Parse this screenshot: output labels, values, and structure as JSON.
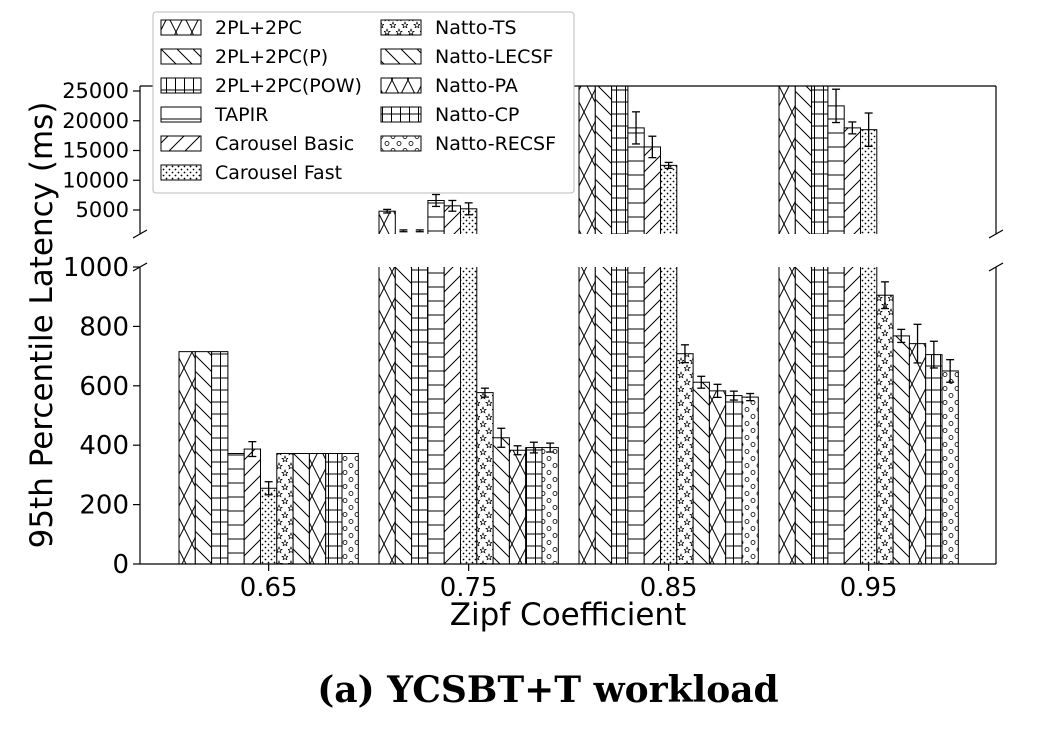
{
  "caption": "(a) YCSBT+T workload",
  "chart_data": {
    "type": "bar",
    "xlabel": "Zipf Coefficient",
    "ylabel": "95th Percentile Latency (ms)",
    "categories": [
      "0.65",
      "0.75",
      "0.85",
      "0.95"
    ],
    "broken_axis": true,
    "ylim_lower": [
      0,
      1000
    ],
    "ylim_upper": [
      2000,
      26000
    ],
    "yticks_lower": [
      "0",
      "200",
      "400",
      "600",
      "800",
      "1000"
    ],
    "yticks_upper": [
      "5000",
      "10000",
      "15000",
      "20000",
      "25000"
    ],
    "legend_position": "upper-left",
    "series": [
      {
        "name": "2PL+2PC",
        "pattern": "x-hatch",
        "values": [
          715,
          4800,
          40000,
          40000
        ],
        "errors": [
          0,
          300,
          0,
          0
        ]
      },
      {
        "name": "2PL+2PC(P)",
        "pattern": "back-diagonal",
        "values": [
          715,
          1500,
          40000,
          40000
        ],
        "errors": [
          0,
          150,
          0,
          0
        ]
      },
      {
        "name": "2PL+2PC(POW)",
        "pattern": "grid",
        "values": [
          715,
          1500,
          40000,
          40000
        ],
        "errors": [
          0,
          150,
          0,
          0
        ]
      },
      {
        "name": "TAPIR",
        "pattern": "horizontal",
        "values": [
          372,
          6600,
          18800,
          22500
        ],
        "errors": [
          0,
          1000,
          2700,
          2800
        ]
      },
      {
        "name": "Carousel Basic",
        "pattern": "forward-diagonal",
        "values": [
          387,
          5700,
          15600,
          18800
        ],
        "errors": [
          25,
          900,
          1800,
          1000
        ]
      },
      {
        "name": "Carousel Fast",
        "pattern": "dots",
        "values": [
          255,
          5200,
          12500,
          18500
        ],
        "errors": [
          22,
          1000,
          500,
          2800
        ]
      },
      {
        "name": "Natto-TS",
        "pattern": "stars",
        "values": [
          372,
          577,
          708,
          905
        ],
        "errors": [
          0,
          15,
          30,
          45
        ]
      },
      {
        "name": "Natto-LECSF",
        "pattern": "back-diagonal",
        "values": [
          372,
          425,
          612,
          768
        ],
        "errors": [
          0,
          32,
          20,
          22
        ]
      },
      {
        "name": "Natto-PA",
        "pattern": "x-hatch",
        "values": [
          372,
          383,
          583,
          742
        ],
        "errors": [
          0,
          15,
          22,
          65
        ]
      },
      {
        "name": "Natto-CP",
        "pattern": "grid-h",
        "values": [
          372,
          392,
          567,
          705
        ],
        "errors": [
          0,
          18,
          15,
          45
        ]
      },
      {
        "name": "Natto-RECSF",
        "pattern": "circles",
        "values": [
          372,
          392,
          562,
          650
        ],
        "errors": [
          0,
          15,
          12,
          38
        ]
      }
    ]
  }
}
